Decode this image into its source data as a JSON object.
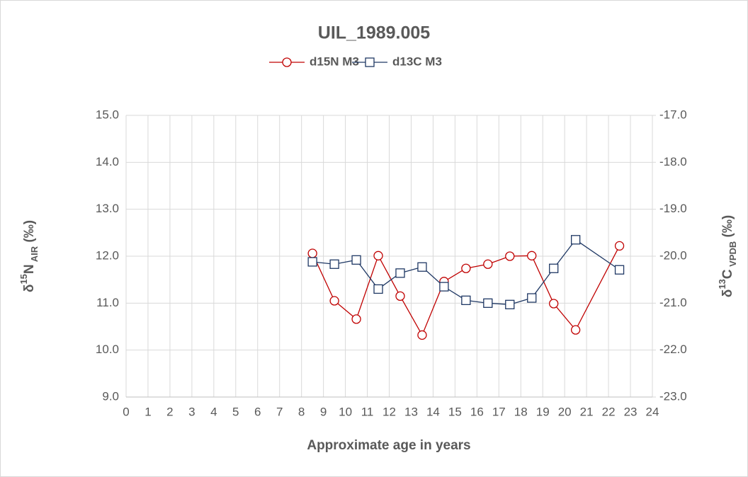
{
  "chart_data": {
    "type": "line",
    "title": "UIL_1989.005",
    "x_label": "Approximate age in years",
    "y_label": [
      "δ",
      "15",
      "N",
      " AIR",
      " (‰)"
    ],
    "y2_label": [
      "δ",
      "13",
      "C",
      " VPDB",
      " (‰)"
    ],
    "x": [
      8.5,
      9.5,
      10.5,
      11.5,
      12.5,
      13.5,
      14.5,
      15.5,
      16.5,
      17.5,
      18.5,
      19.5,
      20.5,
      22.5
    ],
    "series": [
      {
        "name": "d15N M3",
        "color": "#c00000",
        "marker": "circle",
        "values": [
          12.06,
          11.05,
          10.66,
          12.01,
          11.15,
          10.32,
          11.46,
          11.74,
          11.83,
          12.0,
          12.01,
          10.99,
          10.43,
          12.22
        ]
      },
      {
        "name": "d13C M3",
        "color": "#1f3864",
        "marker": "square",
        "axis": "y2",
        "values": [
          -20.12,
          -20.17,
          -20.08,
          -20.7,
          -20.36,
          -20.23,
          -20.65,
          -20.94,
          -21.0,
          -21.03,
          -20.89,
          -20.26,
          -19.65,
          -20.29
        ]
      }
    ],
    "xlim": [
      0,
      24
    ],
    "xticks": [
      0,
      1,
      2,
      3,
      4,
      5,
      6,
      7,
      8,
      9,
      10,
      11,
      12,
      13,
      14,
      15,
      16,
      17,
      18,
      19,
      20,
      21,
      22,
      23,
      24
    ],
    "ylim": [
      9,
      15
    ],
    "yticks": [
      {
        "value": 9,
        "label": "9.0"
      },
      {
        "value": 10,
        "label": "10.0"
      },
      {
        "value": 11,
        "label": "11.0"
      },
      {
        "value": 12,
        "label": "12.0"
      },
      {
        "value": 13,
        "label": "13.0"
      },
      {
        "value": 14,
        "label": "14.0"
      },
      {
        "value": 15,
        "label": "15.0"
      }
    ],
    "y2lim": [
      -23,
      -17
    ],
    "y2ticks": [
      {
        "value": -23,
        "label": "-23.0"
      },
      {
        "value": -22,
        "label": "-22.0"
      },
      {
        "value": -21,
        "label": "-21.0"
      },
      {
        "value": -20,
        "label": "-20.0"
      },
      {
        "value": -19,
        "label": "-19.0"
      },
      {
        "value": -18,
        "label": "-18.0"
      },
      {
        "value": -17,
        "label": "-17.0"
      }
    ],
    "grid": true,
    "legend": "top"
  }
}
